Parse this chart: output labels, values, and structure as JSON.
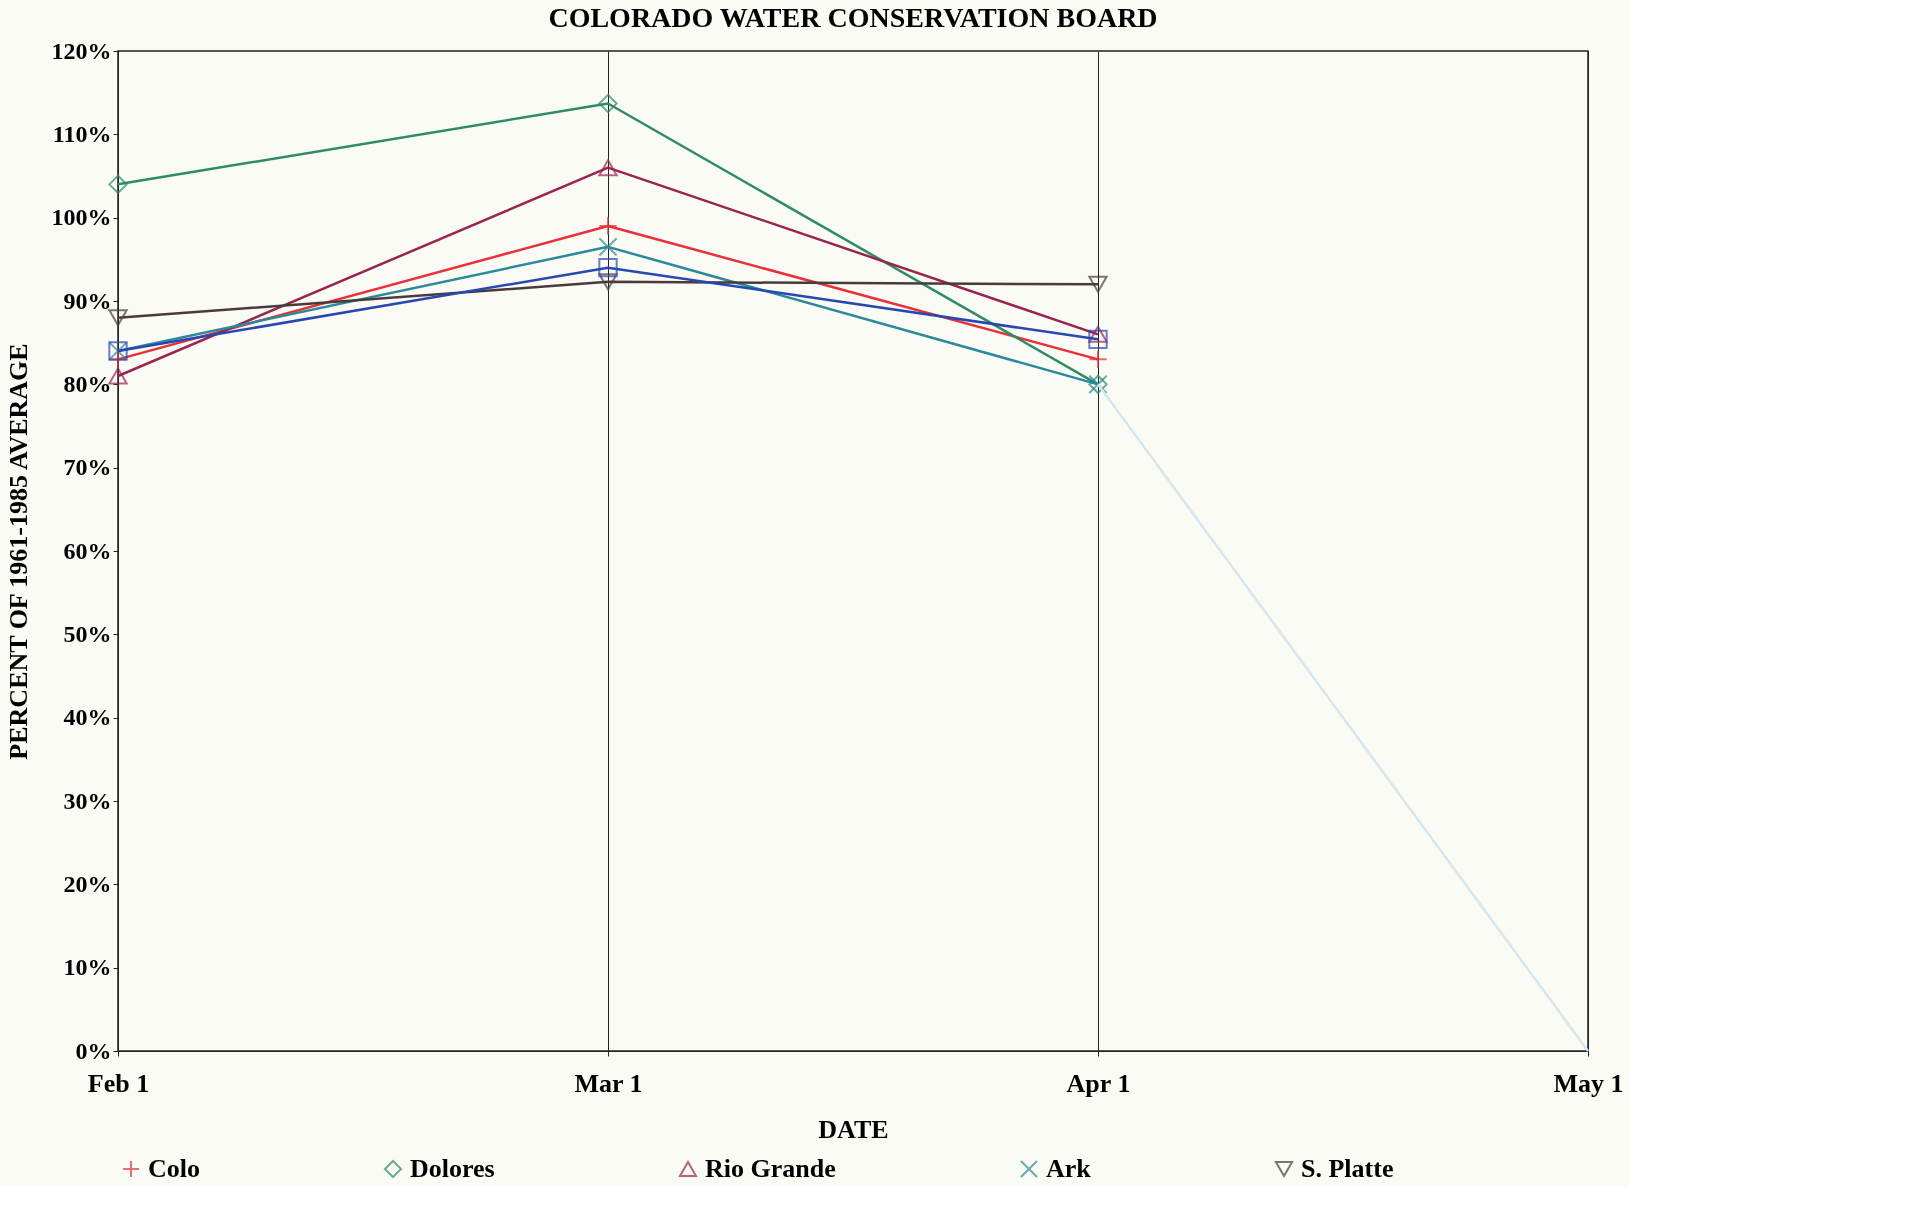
{
  "chart_data": {
    "type": "line",
    "title": "COLORADO WATER CONSERVATION BOARD",
    "xlabel": "DATE",
    "ylabel": "PERCENT OF 1961-1985 AVERAGE",
    "categories": [
      "Feb 1",
      "Mar 1",
      "Apr 1",
      "May 1"
    ],
    "ylim": [
      0,
      120
    ],
    "yticks": [
      {
        "value": 0,
        "label": "0%"
      },
      {
        "value": 10,
        "label": "10%"
      },
      {
        "value": 20,
        "label": "20%"
      },
      {
        "value": 30,
        "label": "30%"
      },
      {
        "value": 40,
        "label": "40%"
      },
      {
        "value": 50,
        "label": "50%"
      },
      {
        "value": 60,
        "label": "60%"
      },
      {
        "value": 70,
        "label": "70%"
      },
      {
        "value": 80,
        "label": "80%"
      },
      {
        "value": 90,
        "label": "90%"
      },
      {
        "value": 100,
        "label": "100%"
      },
      {
        "value": 110,
        "label": "110%"
      },
      {
        "value": 120,
        "label": "120%"
      }
    ],
    "grid": "x",
    "legend": "bottom",
    "line_style": "solid",
    "series": [
      {
        "name": "Colo",
        "color": "#e8303a",
        "marker": "plus",
        "values": [
          83,
          99,
          83,
          null
        ]
      },
      {
        "name": "Dolores",
        "color": "#2e8a68",
        "marker": "diamond",
        "values": [
          104,
          113.7,
          80,
          null
        ]
      },
      {
        "name": "Rio Grande",
        "color": "#9a2450",
        "marker": "triangle",
        "values": [
          81,
          106,
          86,
          null
        ]
      },
      {
        "name": "Ark",
        "color": "#2a8a9a",
        "marker": "cross",
        "values": [
          84,
          96.5,
          80,
          null
        ]
      },
      {
        "name": "S. Platte",
        "color": "#4a3a3a",
        "marker": "triangle-down",
        "values": [
          88,
          92.3,
          92,
          null
        ]
      },
      {
        "color": "#2848b0",
        "marker": "square",
        "values": [
          84,
          94,
          85.4,
          null
        ]
      },
      {
        "color": "#d4e6f0",
        "marker": "none",
        "values": [
          null,
          null,
          80,
          0
        ]
      }
    ]
  }
}
